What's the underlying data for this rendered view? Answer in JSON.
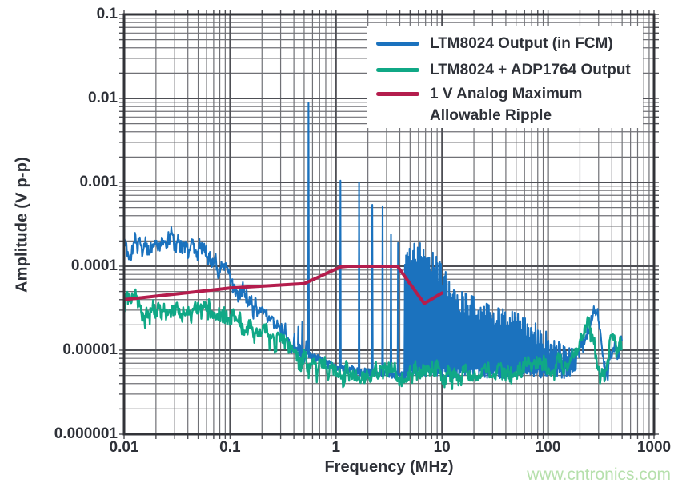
{
  "chart_data": {
    "type": "line",
    "title": "",
    "xlabel": "Frequency (MHz)",
    "ylabel": "Amplitude (V p-p)",
    "x_scale": "log",
    "y_scale": "log",
    "xlim_mhz": [
      0.01,
      1000
    ],
    "ylim_v": [
      1e-06,
      0.1
    ],
    "x_ticks": [
      "0.01",
      "0.1",
      "1",
      "10",
      "100",
      "1000"
    ],
    "y_ticks": [
      "0.1",
      "0.01",
      "0.001",
      "0.0001",
      "0.00001",
      "0.000001"
    ],
    "grid": "log-log graph paper, major decade lines plus minor 2-9 lines, outward edge ticks",
    "legend_position": "top-right",
    "series": [
      {
        "name": "ltm8024-output-fcm",
        "label": "LTM8024 Output (in FCM)",
        "color": "#1b72be",
        "style": "noisy switching spectrum",
        "data": {
          "left_envelope_mhz_v": [
            [
              0.01,
              0.000155
            ],
            [
              0.014,
              0.00018
            ],
            [
              0.02,
              0.00022
            ],
            [
              0.027,
              0.00023
            ],
            [
              0.035,
              0.0002
            ],
            [
              0.05,
              0.00015
            ],
            [
              0.07,
              0.000105
            ],
            [
              0.1,
              7e-05
            ],
            [
              0.15,
              3.8e-05
            ],
            [
              0.22,
              2.2e-05
            ],
            [
              0.3,
              1.6e-05
            ],
            [
              0.45,
              1.15e-05
            ],
            [
              0.55,
              1e-05
            ]
          ],
          "pre_spikes_mhz_v": [
            [
              0.44,
              1.9e-05
            ],
            [
              0.48,
              2.2e-05
            ]
          ],
          "baseline_mhz_v": [
            [
              0.55,
              9e-06
            ],
            [
              0.8,
              7e-06
            ],
            [
              1.0,
              6.2e-06
            ],
            [
              2.0,
              5.4e-06
            ],
            [
              4.4,
              5.1e-06
            ]
          ],
          "harmonic_spikes_mhz_v": [
            [
              0.55,
              0.0088
            ],
            [
              1.1,
              0.00105
            ],
            [
              1.65,
              0.001
            ],
            [
              2.2,
              0.00054
            ],
            [
              2.75,
              0.00052
            ],
            [
              3.3,
              0.00024
            ],
            [
              3.85,
              0.00019
            ]
          ],
          "band_top_mhz_v": [
            [
              4.4,
              0.00013
            ],
            [
              5.2,
              0.000185
            ],
            [
              6.5,
              0.00019
            ],
            [
              7.6,
              0.00016
            ],
            [
              9,
              0.000125
            ],
            [
              10.5,
              9e-05
            ],
            [
              12,
              6.5e-05
            ],
            [
              15,
              5e-05
            ],
            [
              20,
              4.3e-05
            ],
            [
              28,
              3.4e-05
            ],
            [
              42,
              3e-05
            ],
            [
              60,
              2.5e-05
            ],
            [
              80,
              2e-05
            ],
            [
              105,
              1.5e-05
            ],
            [
              130,
              1.2e-05
            ],
            [
              165,
              1.05e-05
            ],
            [
              185,
              1e-05
            ]
          ],
          "noise_floor_v": 5.3e-06,
          "right_envelope_mhz_v": [
            [
              185,
              1e-05
            ],
            [
              215,
              1.4e-05
            ],
            [
              240,
              2e-05
            ],
            [
              270,
              3e-05
            ],
            [
              295,
              3.4e-05
            ],
            [
              310,
              2e-05
            ],
            [
              330,
              9e-06
            ],
            [
              360,
              7e-06
            ],
            [
              400,
              1e-05
            ],
            [
              440,
              1.3e-05
            ],
            [
              470,
              1.1e-05
            ],
            [
              500,
              1.3e-05
            ]
          ]
        }
      },
      {
        "name": "ltm8024-adp1764-output",
        "label": "LTM8024 + ADP1764 Output",
        "color": "#10a886",
        "style": "noisy line",
        "data": {
          "envelope_mhz_v": [
            [
              0.01,
              3.2e-05
            ],
            [
              0.0125,
              5.5e-05
            ],
            [
              0.015,
              2.9e-05
            ],
            [
              0.02,
              3.3e-05
            ],
            [
              0.028,
              2.7e-05
            ],
            [
              0.04,
              3.3e-05
            ],
            [
              0.055,
              2.9e-05
            ],
            [
              0.08,
              3.1e-05
            ],
            [
              0.1,
              2.7e-05
            ],
            [
              0.14,
              1.9e-05
            ],
            [
              0.2,
              1.7e-05
            ],
            [
              0.3,
              1.35e-05
            ],
            [
              0.4,
              8.5e-06
            ],
            [
              0.7,
              6.3e-06
            ],
            [
              1,
              5.8e-06
            ],
            [
              3,
              5.3e-06
            ],
            [
              10,
              5.6e-06
            ],
            [
              30,
              5.8e-06
            ],
            [
              60,
              6.1e-06
            ],
            [
              100,
              6.5e-06
            ],
            [
              140,
              7.2e-06
            ],
            [
              180,
              1e-05
            ],
            [
              210,
              1.6e-05
            ],
            [
              235,
              2.6e-05
            ],
            [
              255,
              1.9e-05
            ],
            [
              275,
              1.3e-05
            ],
            [
              300,
              6.5e-06
            ],
            [
              310,
              5.8e-06
            ],
            [
              340,
              6.5e-06
            ],
            [
              370,
              9e-06
            ],
            [
              400,
              1.5e-05
            ],
            [
              430,
              1.45e-05
            ],
            [
              450,
              1.1e-05
            ],
            [
              470,
              1.5e-05
            ],
            [
              500,
              1.3e-05
            ]
          ]
        }
      },
      {
        "name": "1v-analog-max-ripple",
        "label": "1 V Analog Maximum",
        "label2": "Allowable Ripple",
        "color": "#b41d4d",
        "style": "smooth limit line",
        "data": {
          "points_mhz_v": [
            [
              0.01,
              4e-05
            ],
            [
              0.1,
              5.5e-05
            ],
            [
              0.5,
              6.2e-05
            ],
            [
              1.1,
              9.8e-05
            ],
            [
              1.3,
              0.0001
            ],
            [
              3.8,
              0.0001
            ],
            [
              6.8,
              3.6e-05
            ],
            [
              10,
              4.8e-05
            ]
          ]
        }
      }
    ]
  },
  "watermark": {
    "text": "www.cntronics.com",
    "color": "#b6e0ac"
  },
  "style_colors": {
    "text": "#2e3138",
    "grid_minor": "#707176",
    "grid_major": "#4e4f55",
    "frame": "#323338",
    "background": "#ffffff"
  }
}
